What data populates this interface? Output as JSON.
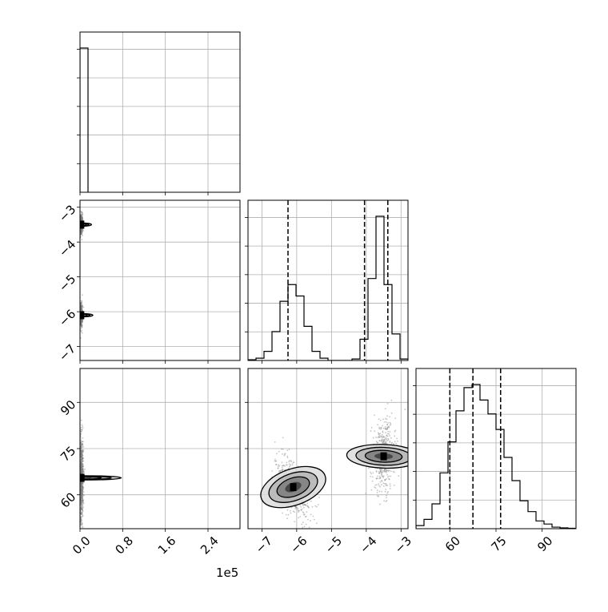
{
  "chart_data": {
    "type": "corner",
    "offset_label": "1e5",
    "quantile_line_color": "#000000",
    "hist_color": "#000000",
    "sample_color": "#7f7f7f",
    "grid": true,
    "parameters": [
      {
        "key": "p0",
        "range": [
          0,
          300000
        ],
        "ticks": [
          0,
          80000,
          160000,
          240000
        ],
        "tick_labels": [
          "0.0",
          "0.8",
          "1.6",
          "2.4"
        ]
      },
      {
        "key": "p1",
        "range": [
          -7.4,
          -2.8
        ],
        "ticks": [
          -7,
          -6,
          -5,
          -4,
          -3
        ],
        "tick_labels": [
          "−7",
          "−6",
          "−5",
          "−4",
          "−3"
        ]
      },
      {
        "key": "p2",
        "range": [
          49,
          101
        ],
        "ticks": [
          60,
          75,
          90
        ],
        "tick_labels": [
          "60",
          "75",
          "90"
        ]
      }
    ],
    "histograms": [
      {
        "param": "p0",
        "bin_edges": [
          0,
          15000
        ],
        "counts": [
          1.0
        ],
        "quantiles": []
      },
      {
        "param": "p1",
        "bin_edges": [
          -7.4,
          -7.17,
          -6.94,
          -6.71,
          -6.48,
          -6.25,
          -6.02,
          -5.79,
          -5.56,
          -5.33,
          -5.1,
          -4.87,
          -4.64,
          -4.41,
          -4.18,
          -3.95,
          -3.72,
          -3.49,
          -3.26,
          -3.03,
          -2.8
        ],
        "counts": [
          0.01,
          0.03,
          0.12,
          0.38,
          0.78,
          1.0,
          0.85,
          0.45,
          0.12,
          0.03,
          0.0,
          0.0,
          0.0,
          0.02,
          0.28,
          1.08,
          1.9,
          1.0,
          0.35,
          0.02
        ],
        "quantiles": [
          -6.25,
          -4.05,
          -3.38
        ]
      },
      {
        "param": "p2",
        "bin_edges": [
          49,
          51.6,
          54.2,
          56.8,
          59.4,
          62,
          64.6,
          67.2,
          69.8,
          72.4,
          75,
          77.6,
          80.2,
          82.8,
          85.4,
          88,
          90.6,
          93.2,
          95.8,
          98.4,
          101
        ],
        "counts": [
          0.02,
          0.06,
          0.16,
          0.36,
          0.56,
          0.76,
          0.91,
          0.93,
          0.83,
          0.74,
          0.64,
          0.46,
          0.31,
          0.18,
          0.11,
          0.05,
          0.03,
          0.01,
          0.005,
          0.003
        ],
        "quantiles": [
          60,
          67.5,
          76.5
        ]
      }
    ],
    "joint_panels": [
      {
        "x": "p0",
        "y": "p1",
        "clusters": [
          {
            "mean": [
              2000,
              -3.5
            ],
            "sd": [
              1500,
              0.15
            ],
            "weight": 0.5
          },
          {
            "mean": [
              2000,
              -6.1
            ],
            "sd": [
              1500,
              0.17
            ],
            "weight": 0.5
          }
        ]
      },
      {
        "x": "p0",
        "y": "p2",
        "clusters": [
          {
            "mean": [
              2500,
              65.5
            ],
            "sd": [
              2000,
              6.5
            ],
            "weight": 1.0
          }
        ]
      },
      {
        "x": "p1",
        "y": "p2",
        "clusters": [
          {
            "mean": [
              -6.1,
              62.5
            ],
            "sd": [
              0.26,
              5.5
            ],
            "corr": -0.55,
            "weight": 0.5
          },
          {
            "mean": [
              -3.5,
              72.5
            ],
            "sd": [
              0.17,
              6.0
            ],
            "corr": 0.1,
            "weight": 0.5
          }
        ]
      }
    ]
  }
}
